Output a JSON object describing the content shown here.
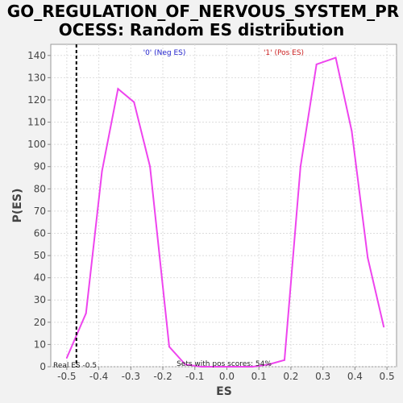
{
  "chart_data": {
    "type": "line",
    "title_line1": "GO_REGULATION_OF_NERVOUS_SYSTEM_PR",
    "title_line2": "OCESS: Random ES distribution",
    "xlabel": "ES",
    "ylabel": "P(ES)",
    "xlim": [
      -0.55,
      0.53
    ],
    "ylim": [
      0,
      145
    ],
    "x_ticks": [
      -0.5,
      -0.4,
      -0.3,
      -0.2,
      -0.1,
      0.0,
      0.1,
      0.2,
      0.3,
      0.4,
      0.5
    ],
    "x_tick_labels": [
      "-0.5",
      "-0.4",
      "-0.3",
      "-0.2",
      "-0.1",
      "0.0",
      "0.1",
      "0.2",
      "0.3",
      "0.4",
      "0.5"
    ],
    "y_ticks": [
      0,
      10,
      20,
      30,
      40,
      50,
      60,
      70,
      80,
      90,
      100,
      110,
      120,
      130,
      140
    ],
    "y_tick_labels": [
      "0",
      "10",
      "20",
      "30",
      "40",
      "50",
      "60",
      "70",
      "80",
      "90",
      "100",
      "110",
      "120",
      "130",
      "140"
    ],
    "grid": true,
    "series": [
      {
        "color": "#ee44ee",
        "x": [
          -0.5,
          -0.44,
          -0.39,
          -0.34,
          -0.29,
          -0.24,
          -0.18,
          -0.13,
          -0.08,
          -0.03,
          0.03,
          0.08,
          0.13,
          0.18,
          0.23,
          0.28,
          0.34,
          0.39,
          0.44,
          0.49
        ],
        "y": [
          4,
          24,
          88,
          125,
          119,
          90,
          9,
          1,
          0,
          0,
          0,
          0,
          1,
          3,
          90,
          136,
          139,
          106,
          49,
          18
        ]
      }
    ],
    "real_es": {
      "value": -0.47,
      "label": "Real ES -0.5"
    },
    "annotations": {
      "neg_label": "'0' (Neg ES)",
      "pos_label": "'1' (Pos ES)",
      "pos_scores": "Sets with pos scores: 54%"
    },
    "colors": {
      "neg_label": "#2222cc",
      "pos_label": "#cc2222",
      "line": "#ee44ee",
      "plot_bg": "#ffffff",
      "page_bg": "#f2f2f2"
    }
  }
}
